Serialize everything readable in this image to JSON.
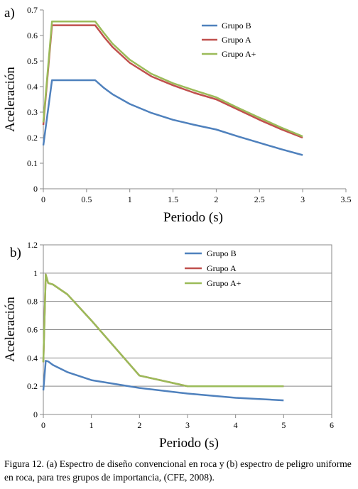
{
  "chart_data": [
    {
      "panel": "a)",
      "type": "line",
      "xlabel": "Periodo (s)",
      "ylabel": "Aceleración",
      "xlim": [
        0,
        3.5
      ],
      "ylim": [
        0,
        0.7
      ],
      "xticks": [
        "0",
        "0.5",
        "1",
        "1.5",
        "2",
        "2.5",
        "3",
        "3.5"
      ],
      "yticks": [
        "0",
        "0.1",
        "0.2",
        "0.3",
        "0.4",
        "0.5",
        "0.6",
        "0.7"
      ],
      "grid": false,
      "legend": "top-right",
      "series": [
        {
          "name": "Grupo B",
          "color": "#4f81bd",
          "x": [
            0,
            0.1,
            0.6,
            0.7,
            0.8,
            1.0,
            1.25,
            1.5,
            1.75,
            2.0,
            2.25,
            2.5,
            2.75,
            3.0
          ],
          "y": [
            0.17,
            0.425,
            0.425,
            0.395,
            0.37,
            0.332,
            0.297,
            0.27,
            0.25,
            0.232,
            0.205,
            0.18,
            0.155,
            0.132
          ]
        },
        {
          "name": "Grupo A",
          "color": "#c0504d",
          "x": [
            0,
            0.1,
            0.6,
            0.7,
            0.8,
            1.0,
            1.25,
            1.5,
            1.75,
            2.0,
            2.25,
            2.5,
            2.75,
            3.0
          ],
          "y": [
            0.25,
            0.64,
            0.64,
            0.595,
            0.555,
            0.493,
            0.44,
            0.405,
            0.375,
            0.35,
            0.31,
            0.27,
            0.233,
            0.2
          ]
        },
        {
          "name": "Grupo A+",
          "color": "#9bbb59",
          "x": [
            0,
            0.1,
            0.6,
            0.7,
            0.8,
            1.0,
            1.25,
            1.5,
            1.75,
            2.0,
            2.25,
            2.5,
            2.75,
            3.0
          ],
          "y": [
            0.26,
            0.655,
            0.655,
            0.61,
            0.568,
            0.505,
            0.45,
            0.413,
            0.385,
            0.358,
            0.317,
            0.278,
            0.24,
            0.205
          ]
        }
      ]
    },
    {
      "panel": "b)",
      "type": "line",
      "xlabel": "Periodo (s)",
      "ylabel": "Aceleración",
      "xlim": [
        0,
        6
      ],
      "ylim": [
        0,
        1.2
      ],
      "xticks": [
        "0",
        "1",
        "2",
        "3",
        "4",
        "5",
        "6"
      ],
      "yticks": [
        "0",
        "0.2",
        "0.4",
        "0.6",
        "0.8",
        "1",
        "1.2"
      ],
      "grid": true,
      "legend": "top-center",
      "series": [
        {
          "name": "Grupo B",
          "color": "#4f81bd",
          "x": [
            0,
            0.05,
            0.1,
            0.2,
            0.5,
            1.0,
            2.0,
            3.0,
            4.0,
            5.0
          ],
          "y": [
            0.17,
            0.38,
            0.375,
            0.35,
            0.3,
            0.243,
            0.188,
            0.148,
            0.118,
            0.1
          ]
        },
        {
          "name": "Grupo A",
          "color": "#c0504d",
          "x": [
            0,
            0.05,
            0.1,
            0.2,
            0.5,
            1.0,
            2.0,
            3.0,
            4.0,
            5.0
          ],
          "y": [
            0.37,
            0.99,
            0.93,
            0.92,
            0.85,
            0.665,
            0.275,
            0.2,
            0.2,
            0.2
          ]
        },
        {
          "name": "Grupo A+",
          "color": "#9bbb59",
          "x": [
            0,
            0.05,
            0.1,
            0.2,
            0.5,
            1.0,
            2.0,
            3.0,
            4.0,
            5.0
          ],
          "y": [
            0.37,
            0.99,
            0.93,
            0.92,
            0.85,
            0.665,
            0.275,
            0.2,
            0.2,
            0.2
          ]
        }
      ]
    }
  ],
  "caption": "Figura 12. (a) Espectro de diseño convencional en roca y (b) espectro de peligro uniforme en roca, para tres grupos de importancia, (CFE, 2008)."
}
